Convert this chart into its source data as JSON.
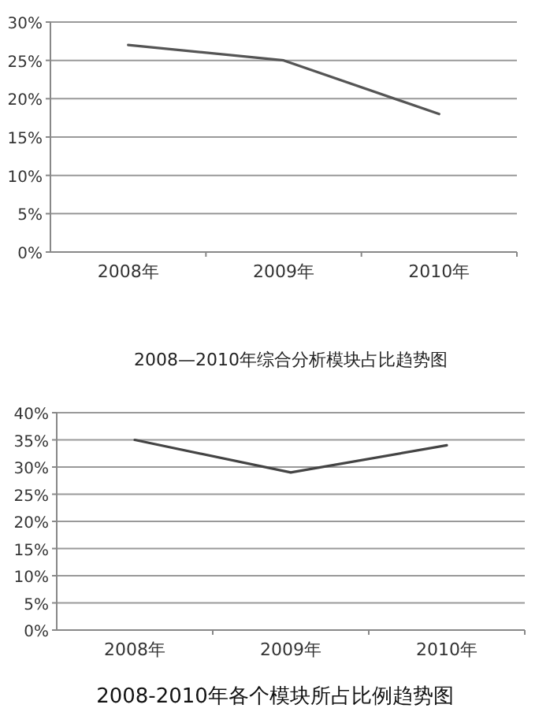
{
  "chart_data": [
    {
      "type": "line",
      "categories": [
        "2008年",
        "2009年",
        "2010年"
      ],
      "series": [
        {
          "color": "#555555",
          "values": [
            27,
            25,
            18
          ]
        }
      ],
      "ylim": [
        0,
        30
      ],
      "yticks": [
        {
          "value": 0,
          "label": "0%"
        },
        {
          "value": 5,
          "label": "5%"
        },
        {
          "value": 10,
          "label": "10%"
        },
        {
          "value": 15,
          "label": "15%"
        },
        {
          "value": 20,
          "label": "20%"
        },
        {
          "value": 25,
          "label": "25%"
        },
        {
          "value": 30,
          "label": "30%"
        }
      ],
      "grid": "y",
      "marker": "none",
      "line_style": "solid"
    },
    {
      "type": "line",
      "title": "2008—2010年综合分析模块占比趋势图",
      "categories": [
        "2008年",
        "2009年",
        "2010年"
      ],
      "series": [
        {
          "color": "#444444",
          "values": [
            35,
            29,
            34
          ]
        }
      ],
      "ylim": [
        0,
        40
      ],
      "yticks": [
        {
          "value": 0,
          "label": "0%"
        },
        {
          "value": 5,
          "label": "5%"
        },
        {
          "value": 10,
          "label": "10%"
        },
        {
          "value": 15,
          "label": "15%"
        },
        {
          "value": 20,
          "label": "20%"
        },
        {
          "value": 25,
          "label": "25%"
        },
        {
          "value": 30,
          "label": "30%"
        },
        {
          "value": 35,
          "label": "35%"
        },
        {
          "value": 40,
          "label": "40%"
        }
      ],
      "grid": "y",
      "marker": "none",
      "line_style": "solid",
      "annotations": [
        "2008-2010年各个模块所占比例趋势图"
      ]
    }
  ]
}
